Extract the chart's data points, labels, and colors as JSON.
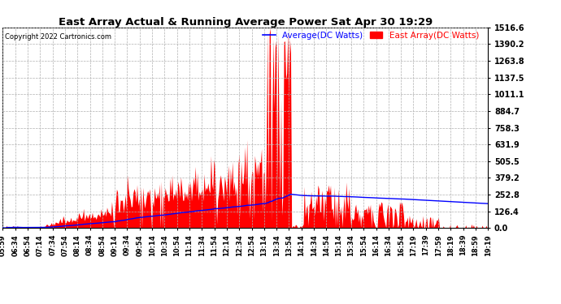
{
  "title": "East Array Actual & Running Average Power Sat Apr 30 19:29",
  "copyright": "Copyright 2022 Cartronics.com",
  "legend_avg": "Average(DC Watts)",
  "legend_east": "East Array(DC Watts)",
  "ylabel_right_ticks": [
    0.0,
    126.4,
    252.8,
    379.2,
    505.5,
    631.9,
    758.3,
    884.7,
    1011.1,
    1137.5,
    1263.8,
    1390.2,
    1516.6
  ],
  "ymax": 1516.6,
  "ymin": 0.0,
  "x_tick_labels": [
    "05:59",
    "06:34",
    "06:54",
    "07:14",
    "07:34",
    "07:54",
    "08:14",
    "08:34",
    "08:54",
    "09:14",
    "09:34",
    "09:54",
    "10:14",
    "10:34",
    "10:54",
    "11:14",
    "11:34",
    "11:54",
    "12:14",
    "12:34",
    "12:54",
    "13:14",
    "13:34",
    "13:54",
    "14:14",
    "14:34",
    "14:54",
    "15:14",
    "15:34",
    "15:54",
    "16:14",
    "16:34",
    "16:54",
    "17:19",
    "17:39",
    "17:59",
    "18:19",
    "18:39",
    "18:59",
    "19:19"
  ],
  "background_color": "#ffffff",
  "grid_color": "#b0b0b0",
  "bar_color": "#ff0000",
  "avg_line_color": "#0000ff",
  "title_color": "#000000",
  "copyright_color": "#000000",
  "legend_avg_color": "#0000ff",
  "legend_east_color": "#ff0000"
}
